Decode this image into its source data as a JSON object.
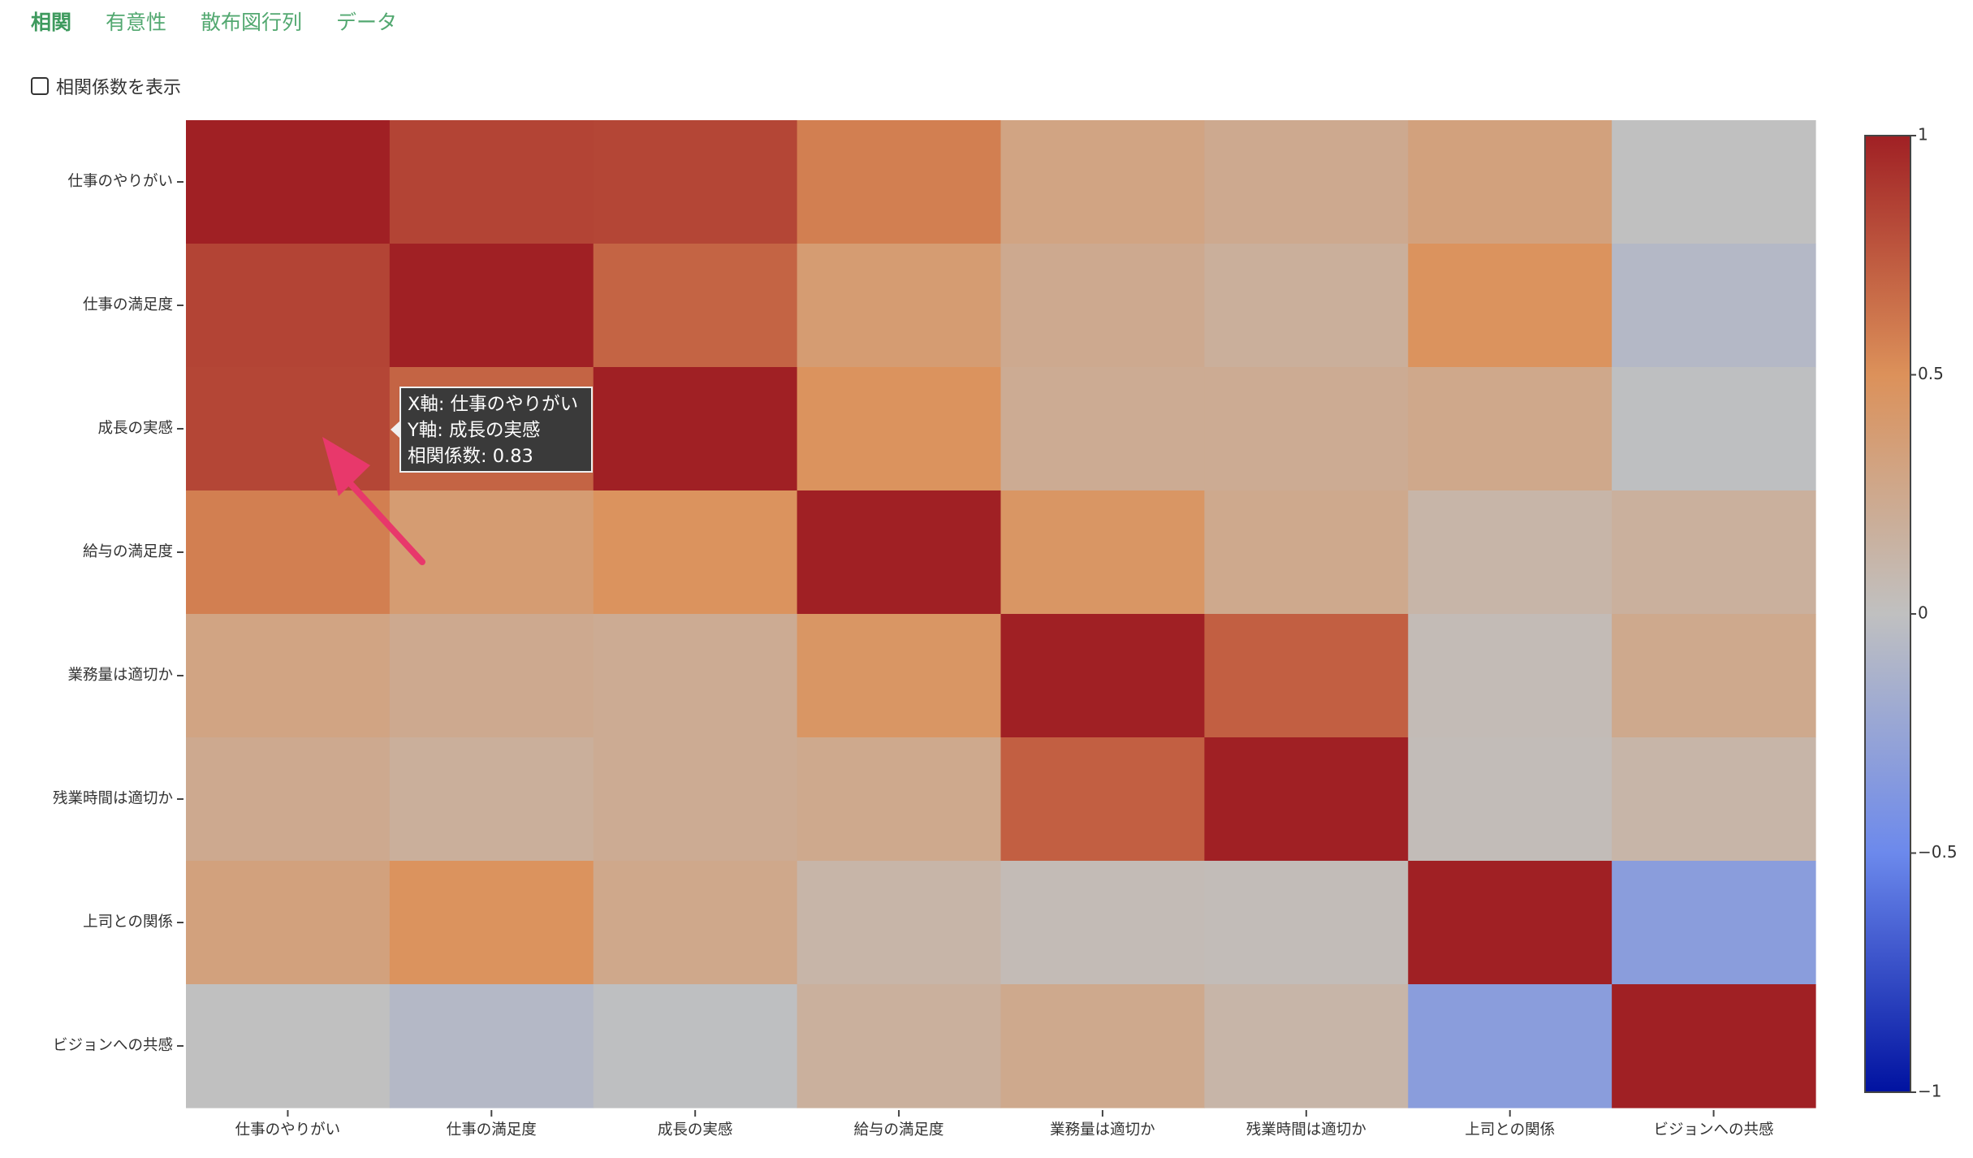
{
  "tabs": [
    {
      "label": "相関",
      "active": true
    },
    {
      "label": "有意性",
      "active": false
    },
    {
      "label": "散布図行列",
      "active": false
    },
    {
      "label": "データ",
      "active": false
    }
  ],
  "options": {
    "show_coefficients_label": "相関係数を表示",
    "show_coefficients_checked": false
  },
  "chart_data": {
    "type": "heatmap",
    "x_categories": [
      "仕事のやりがい",
      "仕事の満足度",
      "成長の実感",
      "給与の満足度",
      "業務量は適切か",
      "残業時間は適切か",
      "上司との関係",
      "ビジョンへの共感"
    ],
    "y_categories": [
      "仕事のやりがい",
      "仕事の満足度",
      "成長の実感",
      "給与の満足度",
      "業務量は適切か",
      "残業時間は適切か",
      "上司との関係",
      "ビジョンへの共感"
    ],
    "z": [
      [
        1.0,
        0.84,
        0.83,
        0.58,
        0.3,
        0.24,
        0.33,
        0.0
      ],
      [
        0.84,
        1.0,
        0.7,
        0.38,
        0.24,
        0.18,
        0.48,
        -0.07
      ],
      [
        0.83,
        0.7,
        1.0,
        0.48,
        0.22,
        0.22,
        0.26,
        -0.01
      ],
      [
        0.58,
        0.38,
        0.48,
        1.0,
        0.45,
        0.25,
        0.12,
        0.17
      ],
      [
        0.3,
        0.24,
        0.22,
        0.45,
        1.0,
        0.72,
        0.05,
        0.25
      ],
      [
        0.24,
        0.18,
        0.22,
        0.25,
        0.72,
        1.0,
        0.04,
        0.12
      ],
      [
        0.33,
        0.48,
        0.26,
        0.12,
        0.05,
        0.04,
        1.0,
        -0.32
      ],
      [
        0.0,
        -0.07,
        -0.01,
        0.17,
        0.25,
        0.12,
        -0.32,
        1.0
      ]
    ],
    "zlim": [
      -1,
      1
    ],
    "colorscale": "coolwarm",
    "colorbar_ticks": [
      {
        "value": 1,
        "label": "1"
      },
      {
        "value": 0.5,
        "label": "0.5"
      },
      {
        "value": 0,
        "label": "0"
      },
      {
        "value": -0.5,
        "label": "−0.5"
      },
      {
        "value": -1,
        "label": "−1"
      }
    ]
  },
  "tooltip": {
    "cell_x": 0,
    "cell_y": 2,
    "line1": "X軸: 仕事のやりがい",
    "line2": "Y軸: 成長の実感",
    "line3": "相関係数: 0.83"
  },
  "annotation": {
    "type": "arrow",
    "color": "#e8386b"
  }
}
